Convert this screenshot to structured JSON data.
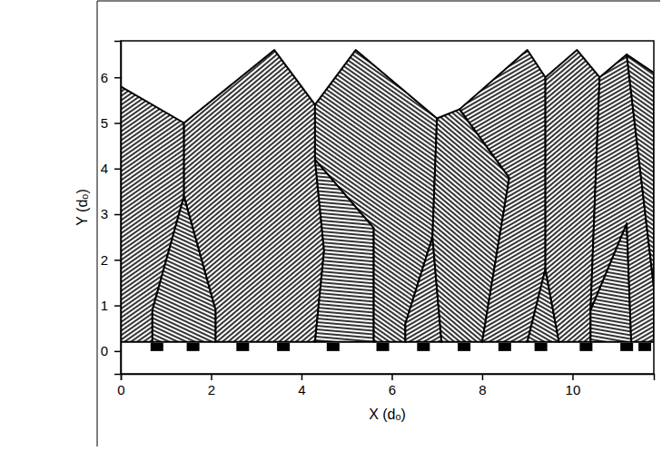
{
  "chart_data": {
    "type": "grain_map",
    "x_label": "X (dₒ)",
    "y_label": "Y (dₒ)",
    "xlim": [
      0,
      11.8
    ],
    "ylim": [
      -0.5,
      6.8
    ],
    "xticks": [
      0,
      2,
      4,
      6,
      8,
      10
    ],
    "yticks": [
      0,
      1,
      2,
      3,
      4,
      5,
      6
    ],
    "grains": [
      {
        "x": [
          0,
          0,
          1.4,
          1.4,
          0.7,
          0.7
        ],
        "y": [
          0.2,
          5.8,
          5.0,
          3.4,
          0.9,
          0.2
        ]
      },
      {
        "x": [
          0.7,
          0.7,
          1.4,
          2.1,
          2.1
        ],
        "y": [
          0.2,
          0.9,
          3.4,
          0.9,
          0.2
        ]
      },
      {
        "x": [
          2.1,
          2.1,
          1.4,
          1.4,
          3.4,
          4.3,
          4.3,
          4.5,
          4.3
        ],
        "y": [
          0.2,
          0.9,
          3.4,
          5.0,
          6.6,
          5.4,
          4.2,
          2.2,
          0.2
        ]
      },
      {
        "x": [
          4.3,
          4.5,
          4.3,
          5.6,
          5.6
        ],
        "y": [
          0.2,
          2.2,
          4.2,
          2.7,
          0.2
        ]
      },
      {
        "x": [
          5.6,
          5.6,
          4.3,
          4.3,
          5.2,
          7.0,
          6.9,
          6.3,
          6.3
        ],
        "y": [
          0.2,
          2.7,
          4.2,
          5.4,
          6.6,
          5.1,
          2.5,
          0.6,
          0.2
        ]
      },
      {
        "x": [
          6.3,
          6.3,
          6.9,
          7.1
        ],
        "y": [
          0.2,
          0.6,
          2.5,
          0.2
        ]
      },
      {
        "x": [
          7.1,
          6.9,
          7.0,
          7.5,
          8.6,
          8.0
        ],
        "y": [
          0.2,
          2.5,
          5.1,
          5.3,
          3.8,
          0.2
        ]
      },
      {
        "x": [
          8.0,
          8.6,
          7.5,
          9.0,
          9.4,
          9.4,
          9.0
        ],
        "y": [
          0.2,
          3.8,
          5.3,
          6.6,
          6.0,
          1.8,
          0.2
        ]
      },
      {
        "x": [
          9.0,
          9.4,
          9.7
        ],
        "y": [
          0.2,
          1.8,
          0.2
        ]
      },
      {
        "x": [
          9.7,
          9.4,
          9.4,
          10.1,
          10.6,
          10.4,
          10.4
        ],
        "y": [
          0.2,
          1.8,
          6.0,
          6.6,
          6.0,
          0.9,
          0.2
        ]
      },
      {
        "x": [
          10.4,
          10.4,
          11.2,
          11.3
        ],
        "y": [
          0.2,
          0.9,
          2.8,
          0.2
        ]
      },
      {
        "x": [
          10.6,
          11.2,
          11.8,
          11.8,
          11.3,
          11.2,
          10.4
        ],
        "y": [
          6.0,
          6.5,
          1.4,
          0.2,
          0.2,
          2.8,
          0.9
        ]
      },
      {
        "x": [
          11.2,
          11.8,
          11.8
        ],
        "y": [
          6.5,
          6.1,
          1.4
        ]
      }
    ],
    "seeds": {
      "x": [
        0.8,
        1.6,
        2.7,
        3.6,
        4.7,
        5.8,
        6.7,
        7.6,
        8.5,
        9.3,
        10.3,
        11.2,
        11.6
      ]
    }
  }
}
